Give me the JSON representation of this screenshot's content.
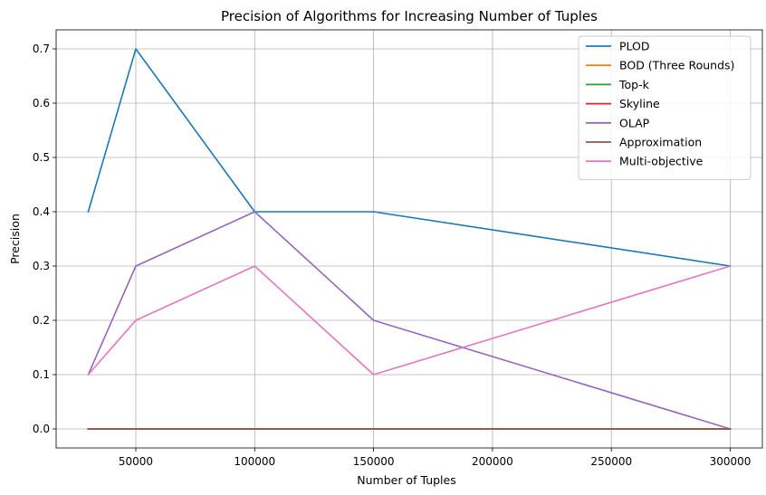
{
  "chart_data": {
    "type": "line",
    "title": "Precision of Algorithms for Increasing Number of Tuples",
    "xlabel": "Number of Tuples",
    "ylabel": "Precision",
    "x": [
      30000,
      50000,
      100000,
      150000,
      300000
    ],
    "xlim": [
      16500,
      313500
    ],
    "ylim": [
      -0.035,
      0.735
    ],
    "xticks": [
      50000,
      100000,
      150000,
      200000,
      250000,
      300000
    ],
    "yticks": [
      0.0,
      0.1,
      0.2,
      0.3,
      0.4,
      0.5,
      0.6,
      0.7
    ],
    "ytick_labels": [
      "0.0",
      "0.1",
      "0.2",
      "0.3",
      "0.4",
      "0.5",
      "0.6",
      "0.7"
    ],
    "grid": true,
    "legend_position": "top-right",
    "series": [
      {
        "name": "PLOD",
        "color": "#1f77b4",
        "values": [
          0.4,
          0.7,
          0.4,
          0.4,
          0.3
        ]
      },
      {
        "name": "BOD (Three Rounds)",
        "color": "#ff7f0e",
        "values": [
          0.0,
          0.0,
          0.0,
          0.0,
          0.0
        ]
      },
      {
        "name": "Top-k",
        "color": "#2ca02c",
        "values": [
          0.0,
          0.0,
          0.0,
          0.0,
          0.0
        ]
      },
      {
        "name": "Skyline",
        "color": "#d62728",
        "values": [
          0.0,
          0.0,
          0.0,
          0.0,
          0.0
        ]
      },
      {
        "name": "OLAP",
        "color": "#9467bd",
        "values": [
          0.1,
          0.3,
          0.4,
          0.2,
          0.0
        ]
      },
      {
        "name": "Approximation",
        "color": "#8c564b",
        "values": [
          0.0,
          0.0,
          0.0,
          0.0,
          0.0
        ]
      },
      {
        "name": "Multi-objective",
        "color": "#e377c2",
        "values": [
          0.1,
          0.2,
          0.3,
          0.1,
          0.3
        ]
      }
    ]
  }
}
